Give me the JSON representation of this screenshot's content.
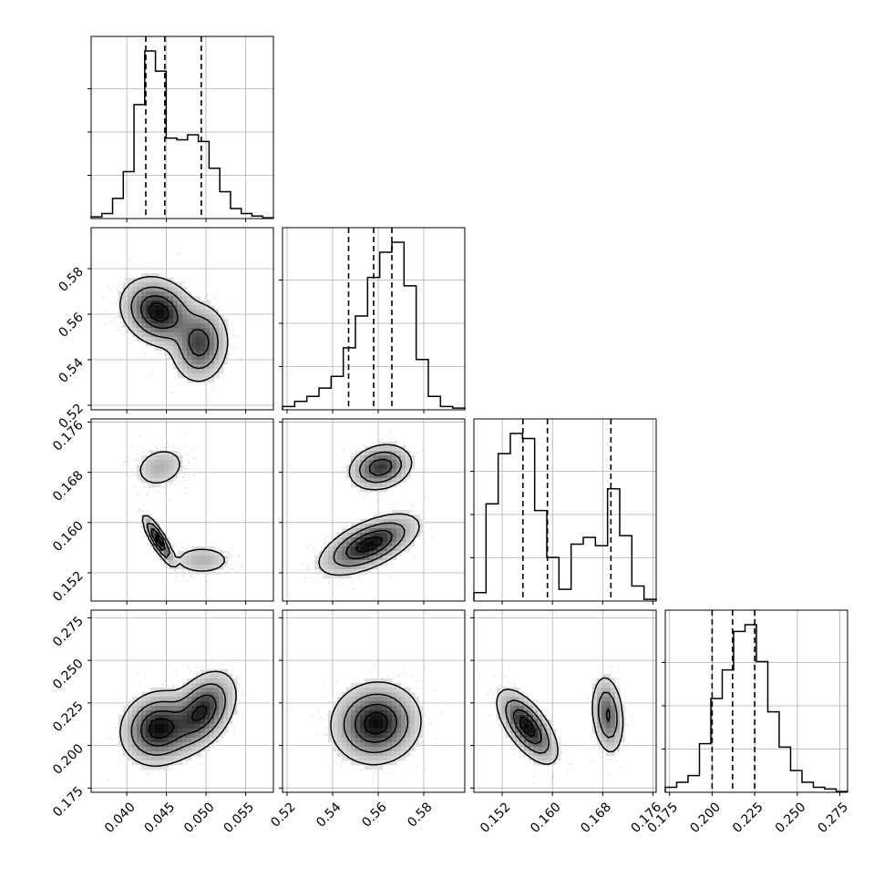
{
  "chart_data": {
    "type": "corner",
    "parameters": [
      {
        "range": [
          0.0355,
          0.0585
        ],
        "ticks": [
          0.04,
          0.045,
          0.05,
          0.055
        ],
        "tick_labels": [
          "0.040",
          "0.045",
          "0.050",
          "0.055"
        ],
        "quantiles": [
          0.0424,
          0.0448,
          0.0494
        ],
        "hist": [
          0.01,
          0.03,
          0.12,
          0.28,
          0.68,
          1.0,
          0.88,
          0.48,
          0.47,
          0.5,
          0.46,
          0.3,
          0.16,
          0.06,
          0.03,
          0.015,
          0.005
        ]
      },
      {
        "range": [
          0.518,
          0.598
        ],
        "ticks": [
          0.52,
          0.54,
          0.56,
          0.58
        ],
        "tick_labels": [
          "0.52",
          "0.54",
          "0.56",
          "0.58"
        ],
        "quantiles": [
          0.547,
          0.558,
          0.566
        ],
        "hist": [
          0.02,
          0.05,
          0.08,
          0.13,
          0.2,
          0.37,
          0.56,
          0.79,
          0.94,
          1.0,
          0.74,
          0.3,
          0.08,
          0.02,
          0.01
        ]
      },
      {
        "range": [
          0.1475,
          0.1765
        ],
        "ticks": [
          0.152,
          0.16,
          0.168,
          0.176
        ],
        "tick_labels": [
          "0.152",
          "0.160",
          "0.168",
          "0.176"
        ],
        "quantiles": [
          0.1553,
          0.1592,
          0.1693
        ],
        "hist": [
          0.05,
          0.58,
          0.88,
          1.0,
          0.97,
          0.54,
          0.26,
          0.07,
          0.34,
          0.38,
          0.33,
          0.67,
          0.39,
          0.09,
          0.01
        ]
      },
      {
        "range": [
          0.1725,
          0.2795
        ],
        "ticks": [
          0.175,
          0.2,
          0.225,
          0.25,
          0.275
        ],
        "tick_labels": [
          "0.175",
          "0.200",
          "0.225",
          "0.250",
          "0.275"
        ],
        "quantiles": [
          0.2,
          0.212,
          0.225
        ],
        "hist": [
          0.03,
          0.06,
          0.1,
          0.29,
          0.56,
          0.73,
          0.96,
          1.0,
          0.78,
          0.48,
          0.27,
          0.13,
          0.06,
          0.03,
          0.02,
          0.005
        ]
      }
    ],
    "blobs": {
      "1-0": [
        {
          "cx": 0.044,
          "cy": 0.561,
          "sx": 0.0022,
          "sy": 0.007,
          "rho": -0.2,
          "w": 0.6
        },
        {
          "cx": 0.0492,
          "cy": 0.547,
          "sx": 0.0017,
          "sy": 0.008,
          "rho": 0.05,
          "w": 0.4
        }
      ],
      "2-0": [
        {
          "cx": 0.0442,
          "cy": 0.1688,
          "sx": 0.0017,
          "sy": 0.0017,
          "rho": 0.2,
          "w": 0.33
        },
        {
          "cx": 0.044,
          "cy": 0.1572,
          "sx": 0.0009,
          "sy": 0.0018,
          "rho": -0.85,
          "w": 0.4
        },
        {
          "cx": 0.0495,
          "cy": 0.154,
          "sx": 0.002,
          "sy": 0.0012,
          "rho": 0.0,
          "w": 0.27
        }
      ],
      "2-1": [
        {
          "cx": 0.561,
          "cy": 0.1688,
          "sx": 0.0065,
          "sy": 0.0017,
          "rho": 0.2,
          "w": 0.33
        },
        {
          "cx": 0.556,
          "cy": 0.1565,
          "sx": 0.01,
          "sy": 0.0022,
          "rho": 0.6,
          "w": 0.67
        }
      ],
      "3-0": [
        {
          "cx": 0.044,
          "cy": 0.21,
          "sx": 0.0022,
          "sy": 0.01,
          "rho": 0.1,
          "w": 0.55
        },
        {
          "cx": 0.0495,
          "cy": 0.22,
          "sx": 0.002,
          "sy": 0.011,
          "rho": 0.4,
          "w": 0.45
        }
      ],
      "3-1": [
        {
          "cx": 0.559,
          "cy": 0.213,
          "sx": 0.009,
          "sy": 0.011,
          "rho": 0.05,
          "w": 1.0
        }
      ],
      "3-2": [
        {
          "cx": 0.156,
          "cy": 0.211,
          "sx": 0.0022,
          "sy": 0.01,
          "rho": -0.65,
          "w": 0.67
        },
        {
          "cx": 0.1688,
          "cy": 0.218,
          "sx": 0.0012,
          "sy": 0.011,
          "rho": -0.2,
          "w": 0.33
        }
      ]
    },
    "grid": true
  }
}
